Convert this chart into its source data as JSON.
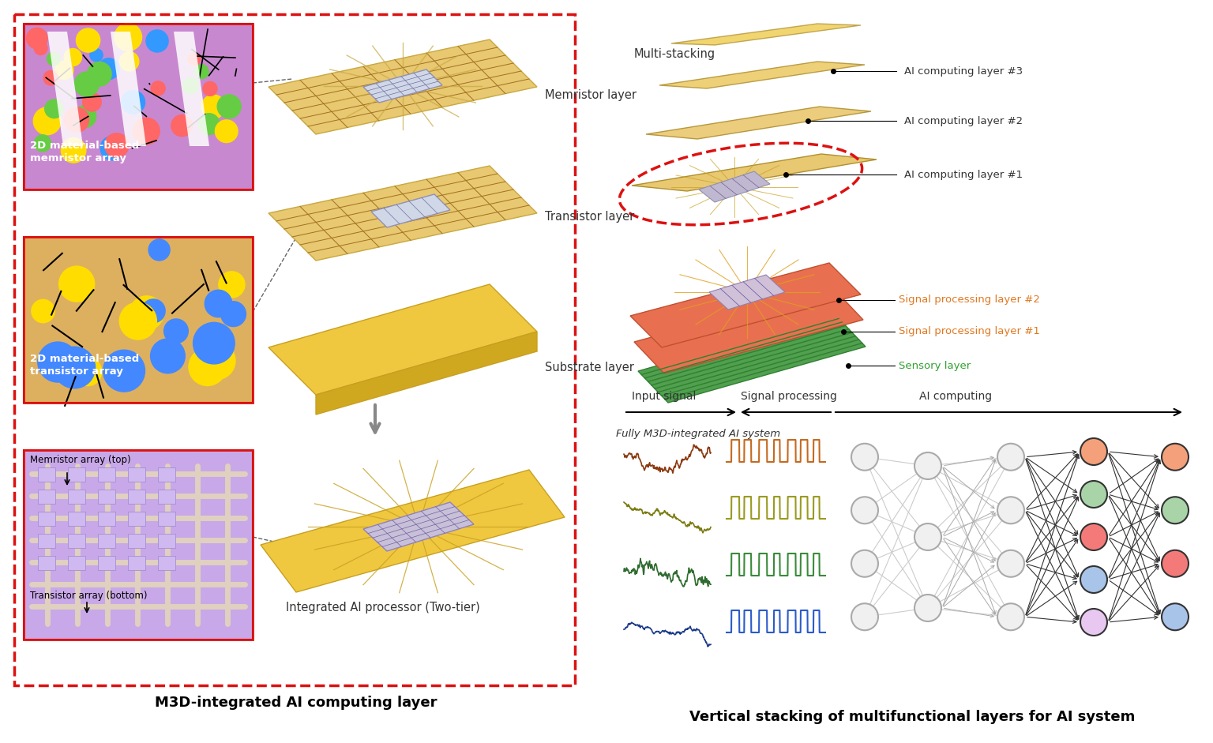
{
  "bg_color": "#ffffff",
  "title_left": "M3D-integrated AI computing layer",
  "title_right": "Vertical stacking of multifunctional layers for AI system",
  "left_box_color": "#cc0000",
  "signal_colors": [
    "#8B3A10",
    "#7B7B10",
    "#2E6B2E",
    "#1A3A8A"
  ],
  "pulse_colors": [
    "#C46A20",
    "#9A9A20",
    "#3A8A3A",
    "#2A5ACA"
  ],
  "node_output_colors": [
    "#F4A07A",
    "#A8D4A8",
    "#F47A7A",
    "#A8C4E8",
    "#E8C8F0"
  ],
  "layer_labels_right": [
    "AI computing layer #3",
    "AI computing layer #2",
    "AI computing layer #1"
  ],
  "layer_labels_signal": [
    "Signal processing layer #2",
    "Signal processing layer #1",
    "Sensory layer"
  ],
  "signal_label_color": "#E07820",
  "sensory_label_color": "#30A030",
  "multi_stacking_text": "Multi-stacking",
  "fully_text": "Fully M3D-integrated AI system",
  "input_signal_text": "Input signal",
  "signal_proc_text": "Signal processing",
  "ai_computing_text": "AI computing",
  "layer_names": [
    "Memristor layer",
    "Transistor layer",
    "Substrate layer",
    "Integrated AI processor (Two-tier)"
  ]
}
